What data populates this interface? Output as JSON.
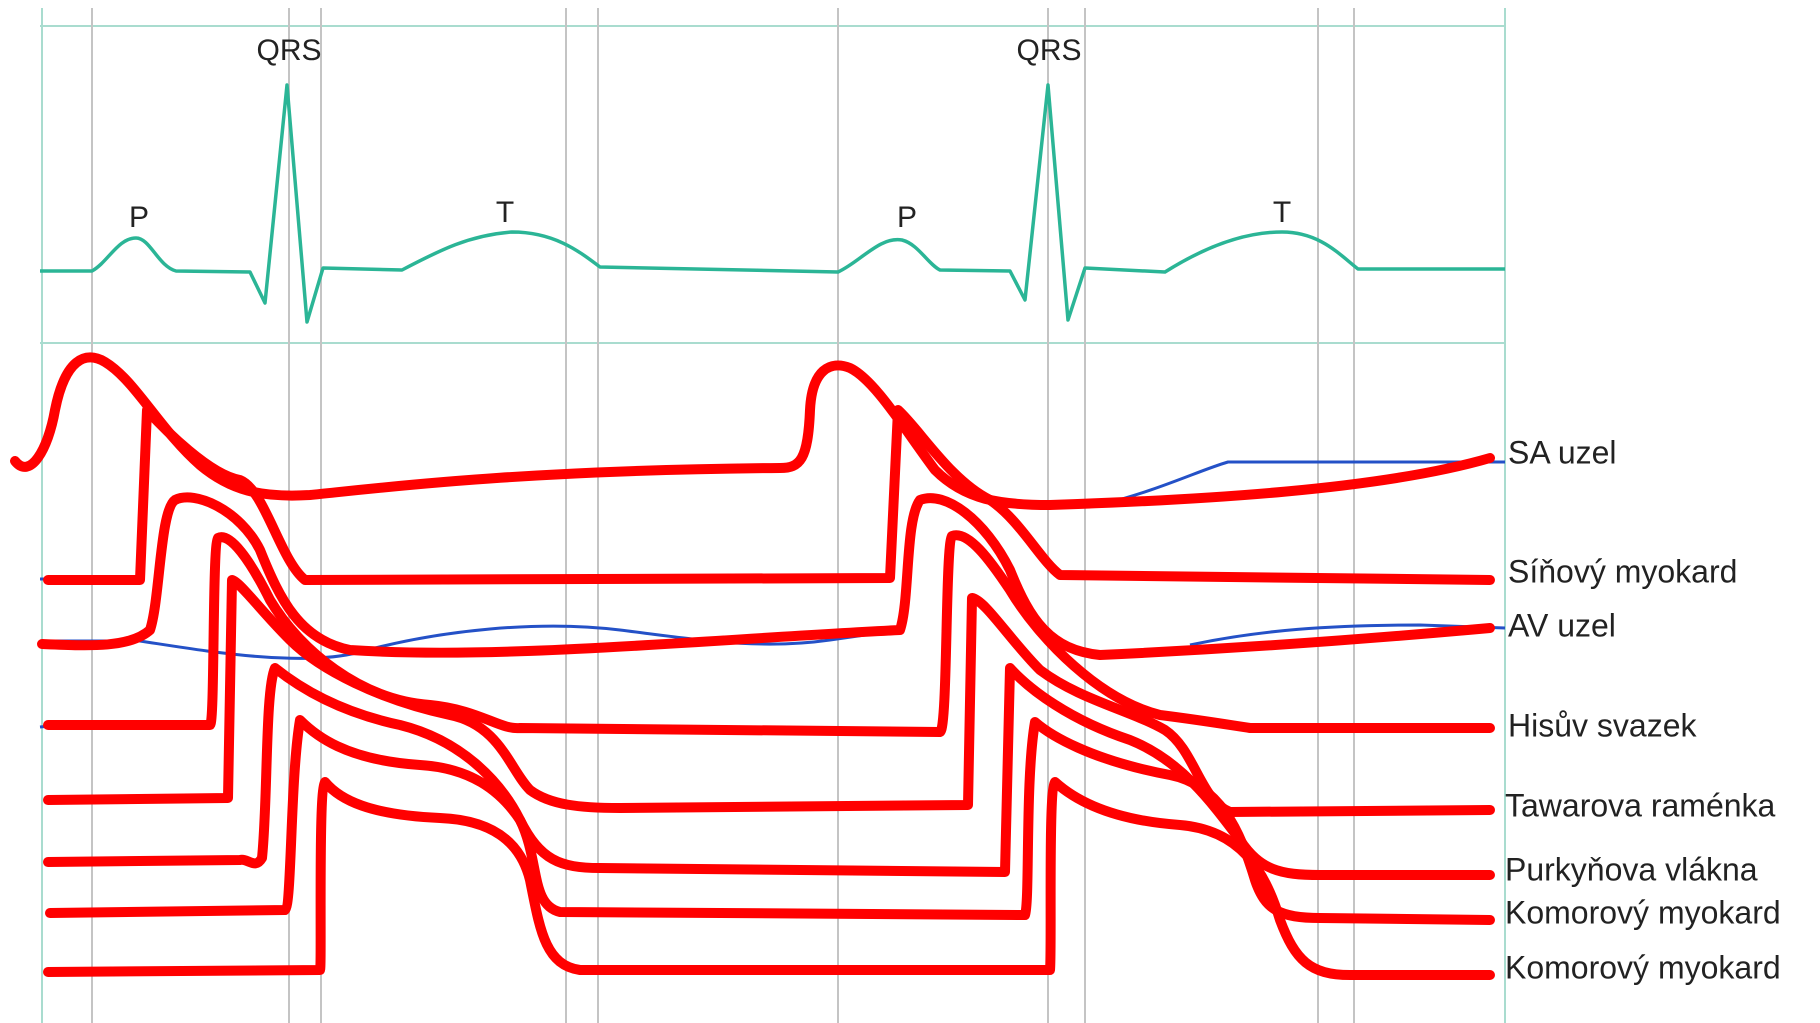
{
  "ecg": {
    "cycle1": {
      "p": "P",
      "qrs": "QRS",
      "t": "T"
    },
    "cycle2": {
      "p": "P",
      "qrs": "QRS",
      "t": "T"
    }
  },
  "rows": [
    {
      "key": "sa",
      "label": "SA uzel"
    },
    {
      "key": "atrial",
      "label": "Síňový myokard"
    },
    {
      "key": "av",
      "label": "AV uzel"
    },
    {
      "key": "his",
      "label": "Hisův svazek"
    },
    {
      "key": "tawara",
      "label": "Tawarova raménka"
    },
    {
      "key": "purkinje",
      "label": "Purkyňova vlákna"
    },
    {
      "key": "vent1",
      "label": "Komorový myokard"
    },
    {
      "key": "vent2",
      "label": "Komorový myokard"
    }
  ],
  "colors": {
    "ecg": "#2bb596",
    "grid": "#a9dccf",
    "gridDark": "#bdbdbd",
    "trace": "#ff0000",
    "underTrace": "#2451c7"
  }
}
